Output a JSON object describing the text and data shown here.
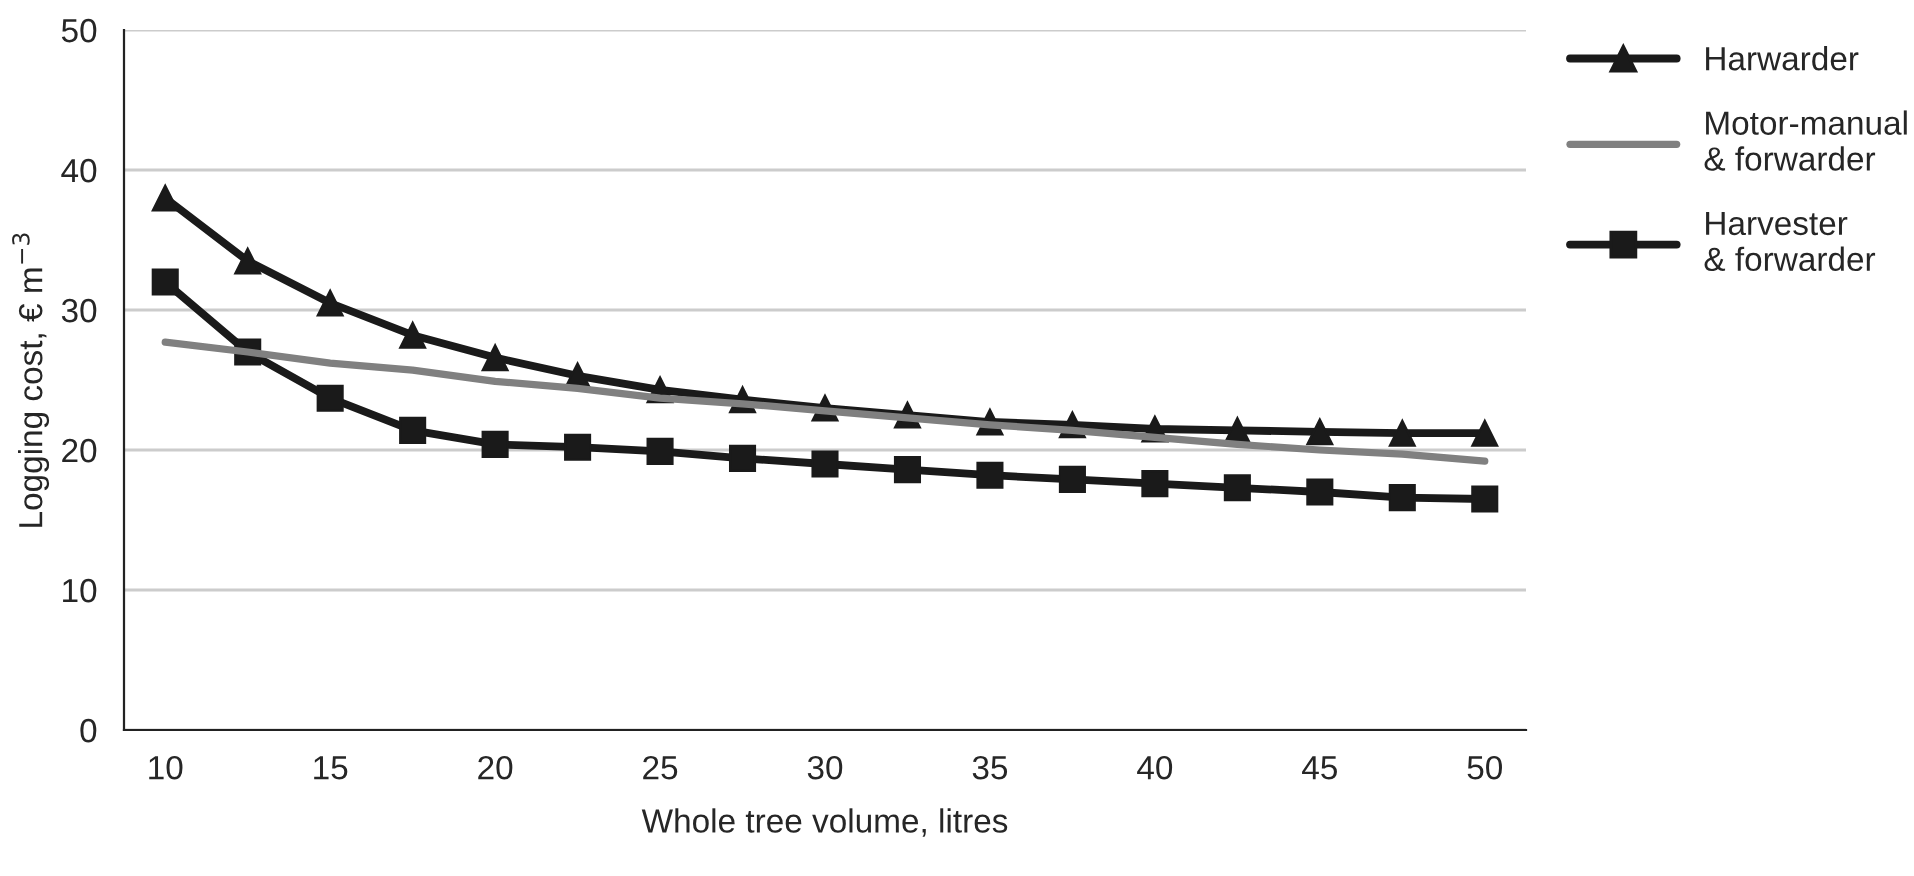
{
  "chart_data": {
    "type": "line",
    "xlabel": "Whole tree volume, litres",
    "ylabel": "Logging cost, € m$^{−3}$",
    "categories": [
      "10",
      null,
      "15",
      null,
      "20",
      null,
      "25",
      null,
      "30",
      null,
      "35",
      null,
      "40",
      null,
      "45",
      null,
      "50"
    ],
    "series": [
      {
        "name": "Harwarder",
        "color": "#1a1a1a",
        "marker": "triangle",
        "values": [
          38,
          33.5,
          30.5,
          28.2,
          26.6,
          25.3,
          24.3,
          23.6,
          23.0,
          22.5,
          22.0,
          21.8,
          21.5,
          21.4,
          21.3,
          21.2,
          21.2
        ]
      },
      {
        "name": "Motor-manual\n& forwarder",
        "color": "#808080",
        "marker": "none",
        "values": [
          27.7,
          27.0,
          26.2,
          25.7,
          24.9,
          24.4,
          23.7,
          23.3,
          22.8,
          22.3,
          21.8,
          21.4,
          20.9,
          20.4,
          20.0,
          19.7,
          19.2
        ]
      },
      {
        "name": "Harvester\n& forwarder",
        "color": "#1a1a1a",
        "marker": "square",
        "values": [
          32,
          27,
          23.7,
          21.4,
          20.4,
          20.2,
          19.9,
          19.4,
          19.0,
          18.6,
          18.2,
          17.9,
          17.6,
          17.3,
          17.0,
          16.6,
          16.5
        ]
      }
    ],
    "ylim": [
      0,
      50
    ],
    "yticks": [
      0,
      10,
      20,
      30,
      40,
      50
    ],
    "grid": "y",
    "legend": "right",
    "line_style": "solid"
  }
}
